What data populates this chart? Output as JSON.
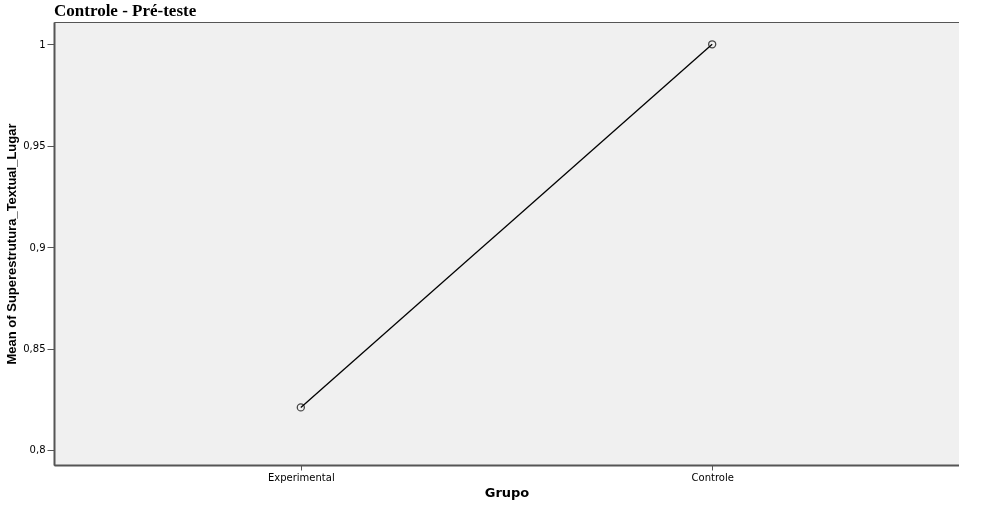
{
  "chart_data": {
    "type": "line",
    "title": "Controle - Pré-teste",
    "xlabel": "Grupo",
    "ylabel": "Mean of Superestrutura_Textual_Lugar",
    "categories": [
      "Experimental",
      "Controle"
    ],
    "series": [
      {
        "color": "#000000",
        "values": [
          0.821,
          1.0
        ]
      }
    ],
    "ylim": [
      0.7926,
      1.011
    ],
    "yticks": [
      {
        "value": 0.8,
        "label": "0,8"
      },
      {
        "value": 0.85,
        "label": "0,85"
      },
      {
        "value": 0.9,
        "label": "0,9"
      },
      {
        "value": 0.95,
        "label": "0,95"
      },
      {
        "value": 1,
        "label": "1"
      }
    ],
    "marker": "circle",
    "line_style": "solid",
    "grid": false,
    "legend": false
  }
}
